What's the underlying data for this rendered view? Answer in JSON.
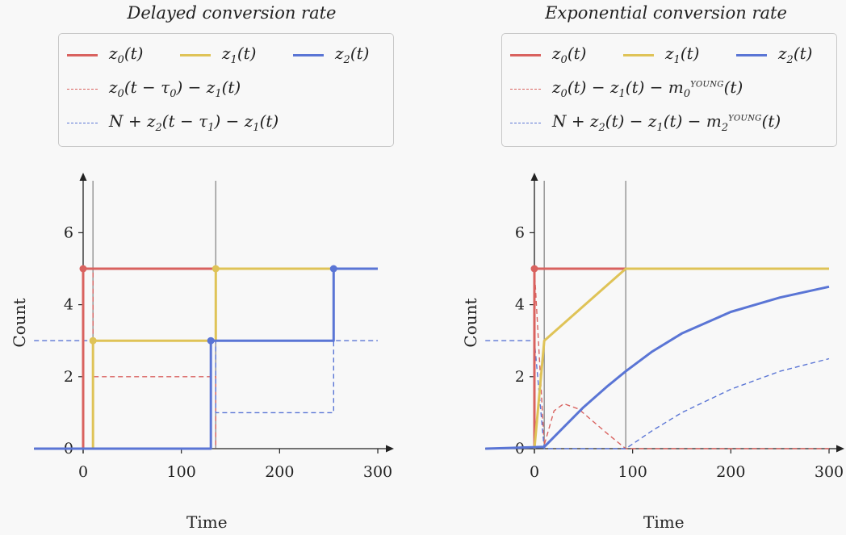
{
  "colors": {
    "red": "#d9625f",
    "yellow": "#dfc357",
    "blue": "#5a75d5",
    "axis": "#222222",
    "vline": "#888888"
  },
  "panels": [
    {
      "title": "Delayed conversion rate",
      "legend": {
        "solid": [
          "z0(t)",
          "z1(t)",
          "z2(t)"
        ],
        "dashed": [
          "z0(t − τ0) − z1(t)",
          "N + z2(t − τ1) − z1(t)"
        ]
      },
      "xlabel": "Time",
      "ylabel": "Count"
    },
    {
      "title": "Exponential conversion rate",
      "legend": {
        "solid": [
          "z0(t)",
          "z1(t)",
          "z2(t)"
        ],
        "dashed": [
          "z0(t) − z1(t) − m0YOUNG(t)",
          "N + z2(t) − z1(t) − m2YOUNG(t)"
        ]
      },
      "xlabel": "Time",
      "ylabel": "Count"
    }
  ],
  "chart_data": [
    {
      "type": "line",
      "title": "Delayed conversion rate",
      "xlabel": "Time",
      "ylabel": "Count",
      "xticks": [
        0,
        100,
        200,
        300
      ],
      "yticks": [
        0,
        2,
        4,
        6
      ],
      "xlim": [
        -50,
        310
      ],
      "ylim": [
        -0.2,
        7.5
      ],
      "vlines": [
        10,
        135
      ],
      "series": [
        {
          "name": "z0(t)",
          "style": "solid",
          "color": "red",
          "x": [
            0,
            0,
            135
          ],
          "y": [
            0,
            5,
            5
          ]
        },
        {
          "name": "z1(t)",
          "style": "solid",
          "color": "yellow",
          "x": [
            10,
            10,
            135,
            135,
            300
          ],
          "y": [
            0,
            3,
            3,
            5,
            5
          ]
        },
        {
          "name": "z2(t)",
          "style": "solid",
          "color": "blue",
          "x": [
            -50,
            130,
            130,
            255,
            255,
            300
          ],
          "y": [
            0,
            0,
            3,
            3,
            5,
            5
          ]
        },
        {
          "name": "z0(t − τ0) − z1(t)",
          "style": "dashed",
          "color": "red",
          "x": [
            0,
            0,
            10,
            10,
            135,
            135
          ],
          "y": [
            0,
            5,
            5,
            2,
            2,
            0
          ]
        },
        {
          "name": "N + z2(t − τ1) − z1(t)",
          "style": "dashed",
          "color": "blue",
          "x": [
            -50,
            10,
            10,
            130,
            130,
            135,
            135,
            255,
            255,
            300
          ],
          "y": [
            3,
            3,
            0,
            0,
            3,
            3,
            1,
            1,
            3,
            3
          ]
        }
      ],
      "markers": [
        {
          "color": "red",
          "x": 0,
          "y": 5
        },
        {
          "color": "yellow",
          "x": 10,
          "y": 3
        },
        {
          "color": "yellow",
          "x": 135,
          "y": 5
        },
        {
          "color": "blue",
          "x": 130,
          "y": 3
        },
        {
          "color": "blue",
          "x": 255,
          "y": 5
        }
      ]
    },
    {
      "type": "line",
      "title": "Exponential conversion rate",
      "xlabel": "Time",
      "ylabel": "Count",
      "xticks": [
        0,
        100,
        200,
        300
      ],
      "yticks": [
        0,
        2,
        4,
        6
      ],
      "xlim": [
        -50,
        310
      ],
      "ylim": [
        -0.2,
        7.5
      ],
      "vlines": [
        10,
        93
      ],
      "series": [
        {
          "name": "z0(t)",
          "style": "solid",
          "color": "red",
          "x": [
            0,
            0,
            93
          ],
          "y": [
            0,
            5,
            5
          ]
        },
        {
          "name": "z1(t)",
          "style": "solid",
          "color": "yellow",
          "x": [
            0,
            10,
            93,
            300
          ],
          "y": [
            0,
            3,
            5,
            5
          ]
        },
        {
          "name": "z2(t)",
          "style": "solid",
          "color": "blue",
          "x": [
            -50,
            10,
            30,
            50,
            75,
            93,
            120,
            150,
            200,
            250,
            300
          ],
          "y": [
            0,
            0.05,
            0.6,
            1.15,
            1.75,
            2.15,
            2.7,
            3.2,
            3.8,
            4.2,
            4.5
          ]
        },
        {
          "name": "z0(t) − z1(t) − m0YOUNG(t)",
          "style": "dashed",
          "color": "red",
          "x": [
            0,
            10,
            20,
            30,
            45,
            60,
            75,
            93,
            300
          ],
          "y": [
            5,
            0.1,
            1.05,
            1.25,
            1.1,
            0.75,
            0.4,
            0,
            0
          ]
        },
        {
          "name": "N + z2(t) − z1(t) − m2YOUNG(t)",
          "style": "dashed",
          "color": "blue",
          "x": [
            -50,
            0,
            10,
            93,
            120,
            150,
            200,
            250,
            300
          ],
          "y": [
            3,
            3,
            0,
            0,
            0.5,
            1.0,
            1.65,
            2.15,
            2.5
          ]
        }
      ],
      "markers": [
        {
          "color": "red",
          "x": 0,
          "y": 5
        }
      ]
    }
  ]
}
